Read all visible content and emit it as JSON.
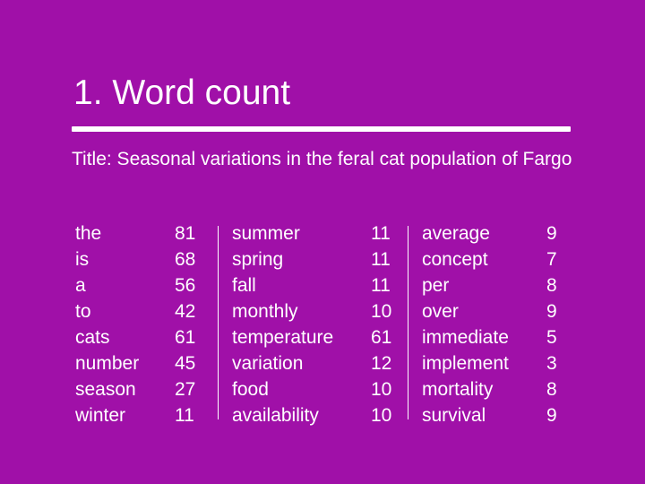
{
  "slide": {
    "title": "1. Word count",
    "subtitle": "Title: Seasonal variations in the feral cat population of Fargo"
  },
  "word_groups": [
    {
      "rows": [
        {
          "word": "the",
          "count": "81"
        },
        {
          "word": "is",
          "count": "68"
        },
        {
          "word": "a",
          "count": "56"
        },
        {
          "word": "to",
          "count": "42"
        },
        {
          "word": "cats",
          "count": "61"
        },
        {
          "word": "number",
          "count": "45"
        },
        {
          "word": "season",
          "count": "27"
        },
        {
          "word": "winter",
          "count": "11"
        }
      ]
    },
    {
      "rows": [
        {
          "word": "summer",
          "count": "11"
        },
        {
          "word": "spring",
          "count": "11"
        },
        {
          "word": "fall",
          "count": "11"
        },
        {
          "word": "monthly",
          "count": "10"
        },
        {
          "word": "temperature",
          "count": "61"
        },
        {
          "word": "variation",
          "count": "12"
        },
        {
          "word": "food",
          "count": "10"
        },
        {
          "word": "availability",
          "count": "10"
        }
      ]
    },
    {
      "rows": [
        {
          "word": "average",
          "count": "9"
        },
        {
          "word": "concept",
          "count": "7"
        },
        {
          "word": "per",
          "count": "8"
        },
        {
          "word": "over",
          "count": "9"
        },
        {
          "word": "immediate",
          "count": "5"
        },
        {
          "word": "implement",
          "count": "3"
        },
        {
          "word": "mortality",
          "count": "8"
        },
        {
          "word": "survival",
          "count": "9"
        }
      ]
    }
  ],
  "colors": {
    "background": "#a010a8",
    "text": "#ffffff"
  }
}
